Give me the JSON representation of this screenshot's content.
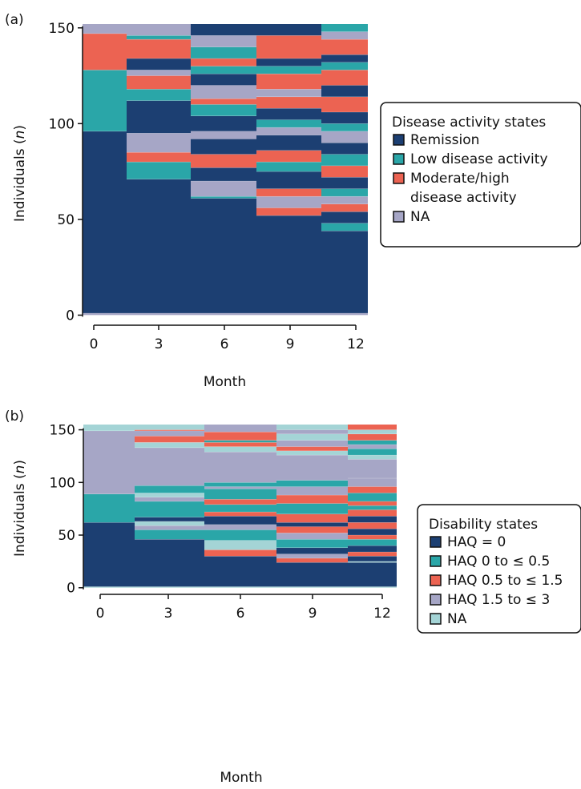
{
  "colors": {
    "disease": {
      "remission": "#1c3f72",
      "low": "#2aa6a8",
      "modhigh": "#ec6352",
      "na": "#a6a6c6"
    },
    "disability": {
      "haq0": "#1c3f72",
      "haq0to05": "#2aa6a8",
      "haq05to15": "#ec6352",
      "haq15to3": "#a6a6c6",
      "na": "#a4d4d6"
    }
  },
  "chart_data": [
    {
      "type": "heatmap",
      "panel_label": "(a)",
      "xlabel": "Month",
      "ylabel_prefix": "Individuals (",
      "ylabel_italic": "n",
      "ylabel_suffix": ")",
      "xticks": [
        0,
        3,
        6,
        9,
        12
      ],
      "yticks": [
        0,
        50,
        100,
        150
      ],
      "ylim": [
        -4,
        152
      ],
      "individuals": 152,
      "legend": {
        "title": "Disease activity states",
        "position": "right",
        "entries": [
          {
            "key": "remission",
            "lines": [
              "Remission"
            ]
          },
          {
            "key": "low",
            "lines": [
              "Low disease activity"
            ]
          },
          {
            "key": "modhigh",
            "lines": [
              "Moderate/high",
              "disease activity"
            ]
          },
          {
            "key": "na",
            "lines": [
              "NA"
            ]
          }
        ]
      },
      "columns": [
        {
          "month": 0,
          "segments": [
            [
              "na",
              0,
              1
            ],
            [
              "remission",
              1,
              96
            ],
            [
              "low",
              96,
              128
            ],
            [
              "modhigh",
              128,
              147
            ],
            [
              "na",
              147,
              152
            ]
          ]
        },
        {
          "month": 3,
          "segments": [
            [
              "na",
              0,
              1
            ],
            [
              "remission",
              1,
              71
            ],
            [
              "low",
              71,
              80
            ],
            [
              "modhigh",
              80,
              85
            ],
            [
              "na",
              85,
              95
            ],
            [
              "remission",
              95,
              112
            ],
            [
              "low",
              112,
              118
            ],
            [
              "modhigh",
              118,
              125
            ],
            [
              "na",
              125,
              128
            ],
            [
              "remission",
              128,
              134
            ],
            [
              "modhigh",
              134,
              144
            ],
            [
              "low",
              144,
              146
            ],
            [
              "na",
              146,
              152
            ]
          ]
        },
        {
          "month": 6,
          "segments": [
            [
              "na",
              0,
              1
            ],
            [
              "remission",
              1,
              61
            ],
            [
              "low",
              61,
              62
            ],
            [
              "na",
              62,
              70
            ],
            [
              "remission",
              70,
              77
            ],
            [
              "modhigh",
              77,
              84
            ],
            [
              "remission",
              84,
              92
            ],
            [
              "na",
              92,
              96
            ],
            [
              "remission",
              96,
              104
            ],
            [
              "low",
              104,
              110
            ],
            [
              "modhigh",
              110,
              113
            ],
            [
              "na",
              113,
              120
            ],
            [
              "remission",
              120,
              126
            ],
            [
              "low",
              126,
              130
            ],
            [
              "modhigh",
              130,
              134
            ],
            [
              "low",
              134,
              140
            ],
            [
              "na",
              140,
              146
            ],
            [
              "remission",
              146,
              152
            ]
          ]
        },
        {
          "month": 9,
          "segments": [
            [
              "na",
              0,
              1
            ],
            [
              "remission",
              1,
              52
            ],
            [
              "modhigh",
              52,
              56
            ],
            [
              "na",
              56,
              62
            ],
            [
              "modhigh",
              62,
              66
            ],
            [
              "remission",
              66,
              75
            ],
            [
              "low",
              75,
              80
            ],
            [
              "modhigh",
              80,
              86
            ],
            [
              "remission",
              86,
              94
            ],
            [
              "na",
              94,
              98
            ],
            [
              "low",
              98,
              102
            ],
            [
              "remission",
              102,
              108
            ],
            [
              "modhigh",
              108,
              114
            ],
            [
              "na",
              114,
              118
            ],
            [
              "modhigh",
              118,
              126
            ],
            [
              "low",
              126,
              130
            ],
            [
              "remission",
              130,
              134
            ],
            [
              "modhigh",
              134,
              146
            ],
            [
              "remission",
              146,
              152
            ]
          ]
        },
        {
          "month": 12,
          "segments": [
            [
              "na",
              0,
              1
            ],
            [
              "remission",
              1,
              44
            ],
            [
              "low",
              44,
              48
            ],
            [
              "remission",
              48,
              54
            ],
            [
              "modhigh",
              54,
              58
            ],
            [
              "na",
              58,
              62
            ],
            [
              "low",
              62,
              66
            ],
            [
              "remission",
              66,
              72
            ],
            [
              "modhigh",
              72,
              78
            ],
            [
              "low",
              78,
              84
            ],
            [
              "remission",
              84,
              90
            ],
            [
              "na",
              90,
              96
            ],
            [
              "low",
              96,
              100
            ],
            [
              "remission",
              100,
              106
            ],
            [
              "modhigh",
              106,
              114
            ],
            [
              "remission",
              114,
              120
            ],
            [
              "modhigh",
              120,
              128
            ],
            [
              "low",
              128,
              132
            ],
            [
              "remission",
              132,
              136
            ],
            [
              "modhigh",
              136,
              144
            ],
            [
              "na",
              144,
              148
            ],
            [
              "low",
              148,
              152
            ]
          ]
        }
      ]
    },
    {
      "type": "heatmap",
      "panel_label": "(b)",
      "xlabel": "Month",
      "ylabel_prefix": "Individuals (",
      "ylabel_italic": "n",
      "ylabel_suffix": ")",
      "xticks": [
        0,
        3,
        6,
        9,
        12
      ],
      "yticks": [
        0,
        50,
        100,
        150
      ],
      "ylim": [
        -4,
        155
      ],
      "individuals": 155,
      "legend": {
        "title": "Disability states",
        "position": "right",
        "entries": [
          {
            "key": "haq0",
            "lines": [
              "HAQ = 0"
            ]
          },
          {
            "key": "haq0to05",
            "lines": [
              "HAQ 0 to ≤ 0.5"
            ]
          },
          {
            "key": "haq05to15",
            "lines": [
              "HAQ 0.5 to ≤ 1.5"
            ]
          },
          {
            "key": "haq15to3",
            "lines": [
              "HAQ 1.5 to ≤ 3"
            ]
          },
          {
            "key": "na",
            "lines": [
              "NA"
            ]
          }
        ]
      },
      "columns": [
        {
          "month": 0,
          "segments": [
            [
              "na",
              0,
              1
            ],
            [
              "haq0",
              1,
              62
            ],
            [
              "haq0to05",
              62,
              89
            ],
            [
              "haq15to3",
              89,
              149
            ],
            [
              "na",
              149,
              155
            ]
          ]
        },
        {
          "month": 3,
          "segments": [
            [
              "na",
              0,
              1
            ],
            [
              "haq0",
              1,
              46
            ],
            [
              "haq0to05",
              46,
              55
            ],
            [
              "haq15to3",
              55,
              59
            ],
            [
              "na",
              59,
              63
            ],
            [
              "haq0",
              63,
              67
            ],
            [
              "haq0to05",
              67,
              82
            ],
            [
              "haq15to3",
              82,
              86
            ],
            [
              "na",
              86,
              90
            ],
            [
              "haq0to05",
              90,
              97
            ],
            [
              "haq15to3",
              97,
              133
            ],
            [
              "na",
              133,
              138
            ],
            [
              "haq05to15",
              138,
              144
            ],
            [
              "haq15to3",
              144,
              149
            ],
            [
              "haq05to15",
              149,
              150
            ],
            [
              "na",
              150,
              155
            ]
          ]
        },
        {
          "month": 6,
          "segments": [
            [
              "na",
              0,
              1
            ],
            [
              "haq0",
              1,
              30
            ],
            [
              "haq05to15",
              30,
              36
            ],
            [
              "na",
              36,
              45
            ],
            [
              "haq0to05",
              45,
              55
            ],
            [
              "haq15to3",
              55,
              60
            ],
            [
              "haq0",
              60,
              68
            ],
            [
              "haq05to15",
              68,
              72
            ],
            [
              "haq0to05",
              72,
              79
            ],
            [
              "haq05to15",
              79,
              84
            ],
            [
              "haq0to05",
              84,
              94
            ],
            [
              "haq15to3",
              94,
              96
            ],
            [
              "haq0to05",
              96,
              100
            ],
            [
              "haq15to3",
              100,
              129
            ],
            [
              "na",
              129,
              134
            ],
            [
              "haq05to15",
              134,
              138
            ],
            [
              "haq0to05",
              138,
              140
            ],
            [
              "haq05to15",
              140,
              148
            ],
            [
              "haq15to3",
              148,
              155
            ]
          ]
        },
        {
          "month": 9,
          "segments": [
            [
              "na",
              0,
              1
            ],
            [
              "haq0",
              1,
              24
            ],
            [
              "haq05to15",
              24,
              28
            ],
            [
              "haq15to3",
              28,
              32
            ],
            [
              "haq0",
              32,
              38
            ],
            [
              "haq0to05",
              38,
              46
            ],
            [
              "haq15to3",
              46,
              52
            ],
            [
              "haq05to15",
              52,
              58
            ],
            [
              "haq0",
              58,
              62
            ],
            [
              "haq05to15",
              62,
              70
            ],
            [
              "haq0to05",
              70,
              80
            ],
            [
              "haq05to15",
              80,
              88
            ],
            [
              "haq15to3",
              88,
              96
            ],
            [
              "haq0to05",
              96,
              102
            ],
            [
              "haq15to3",
              102,
              126
            ],
            [
              "na",
              126,
              130
            ],
            [
              "haq05to15",
              130,
              134
            ],
            [
              "haq15to3",
              134,
              140
            ],
            [
              "na",
              140,
              146
            ],
            [
              "haq15to3",
              146,
              150
            ],
            [
              "na",
              150,
              155
            ]
          ]
        },
        {
          "month": 12,
          "segments": [
            [
              "na",
              0,
              1
            ],
            [
              "haq0",
              1,
              24
            ],
            [
              "na",
              24,
              25
            ],
            [
              "haq0",
              25,
              30
            ],
            [
              "haq05to15",
              30,
              34
            ],
            [
              "haq0",
              34,
              40
            ],
            [
              "haq0to05",
              40,
              46
            ],
            [
              "haq05to15",
              46,
              50
            ],
            [
              "haq0",
              50,
              56
            ],
            [
              "haq05to15",
              56,
              62
            ],
            [
              "haq0",
              62,
              68
            ],
            [
              "haq05to15",
              68,
              74
            ],
            [
              "haq0to05",
              74,
              78
            ],
            [
              "haq05to15",
              78,
              82
            ],
            [
              "haq0to05",
              82,
              90
            ],
            [
              "haq05to15",
              90,
              96
            ],
            [
              "haq15to3",
              96,
              104
            ],
            [
              "haq15to3",
              104,
              122
            ],
            [
              "na",
              122,
              126
            ],
            [
              "haq0to05",
              126,
              132
            ],
            [
              "haq15to3",
              132,
              136
            ],
            [
              "haq0to05",
              136,
              140
            ],
            [
              "haq05to15",
              140,
              146
            ],
            [
              "na",
              146,
              150
            ],
            [
              "haq05to15",
              150,
              155
            ]
          ]
        }
      ]
    }
  ]
}
